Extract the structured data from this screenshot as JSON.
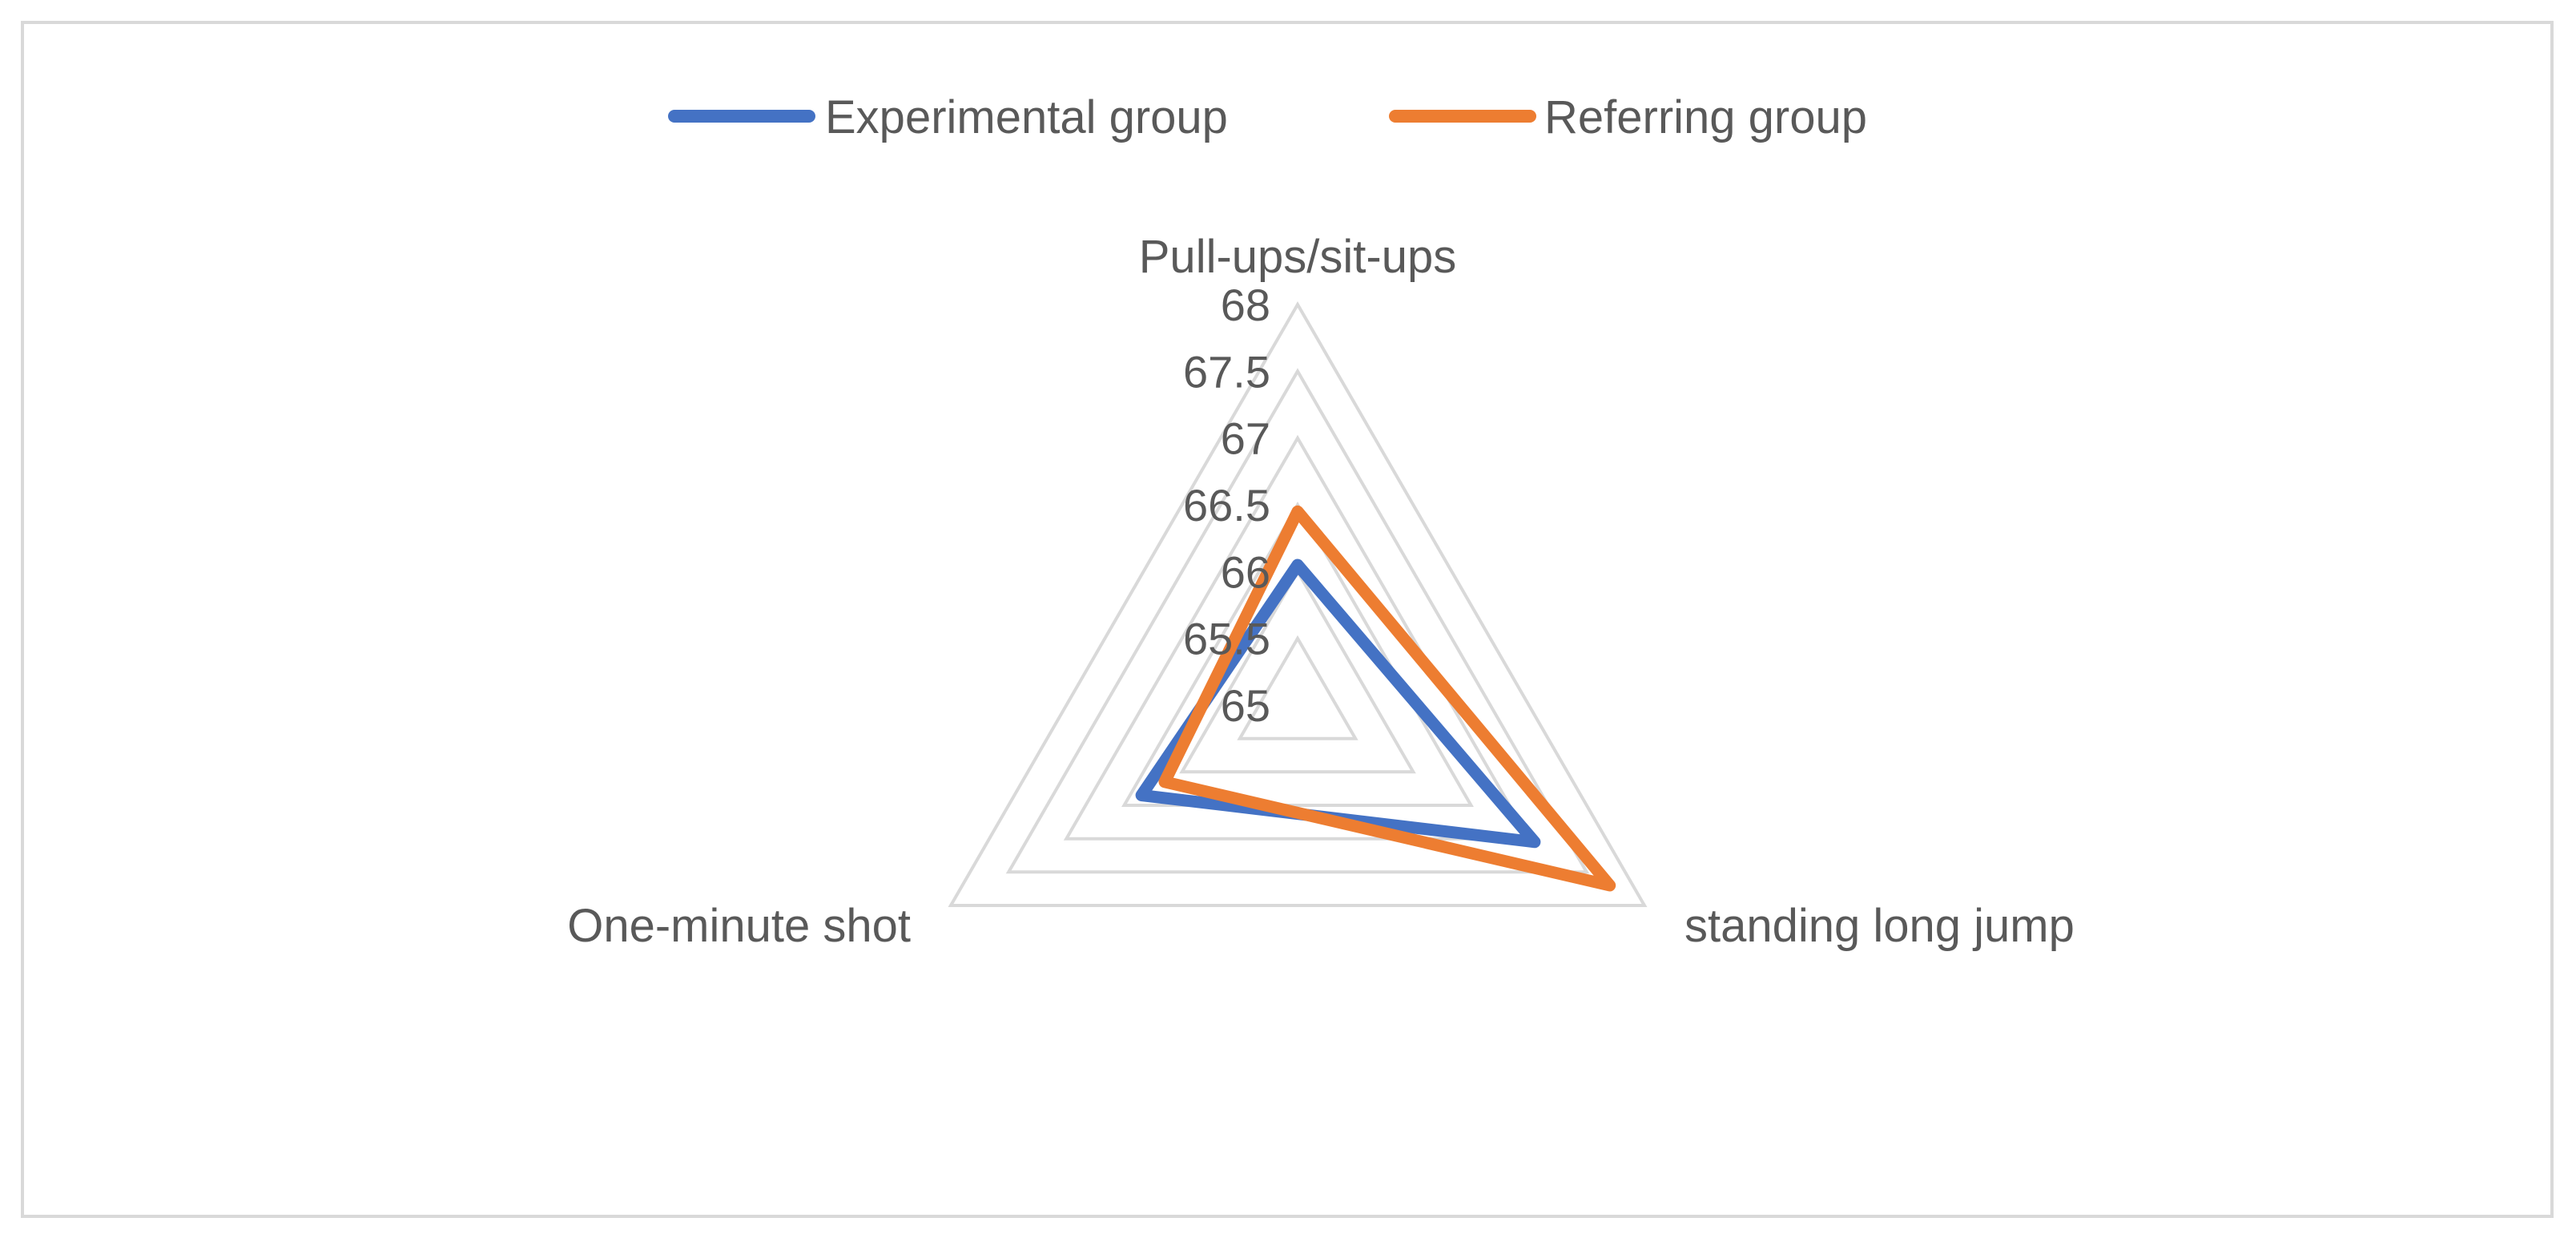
{
  "chart_data": {
    "type": "radar",
    "title": "",
    "categories": [
      "Pull-ups/sit-ups",
      "standing long jump",
      "One-minute shot"
    ],
    "axis": {
      "min": 65,
      "max": 68,
      "step": 0.5,
      "tick_labels": [
        "65",
        "65.5",
        "66",
        "66.5",
        "67",
        "67.5",
        "68"
      ]
    },
    "series": [
      {
        "name": "Experimental group",
        "color": "#4472c4",
        "values": [
          66.05,
          67.05,
          66.35
        ]
      },
      {
        "name": "Referring group",
        "color": "#ed7d31",
        "values": [
          66.45,
          67.7,
          66.15
        ]
      }
    ],
    "legend_position": "top",
    "grid": true,
    "colors": {
      "grid": "#d9d9d9",
      "text": "#595959",
      "frame": "#d9d9d9"
    }
  }
}
